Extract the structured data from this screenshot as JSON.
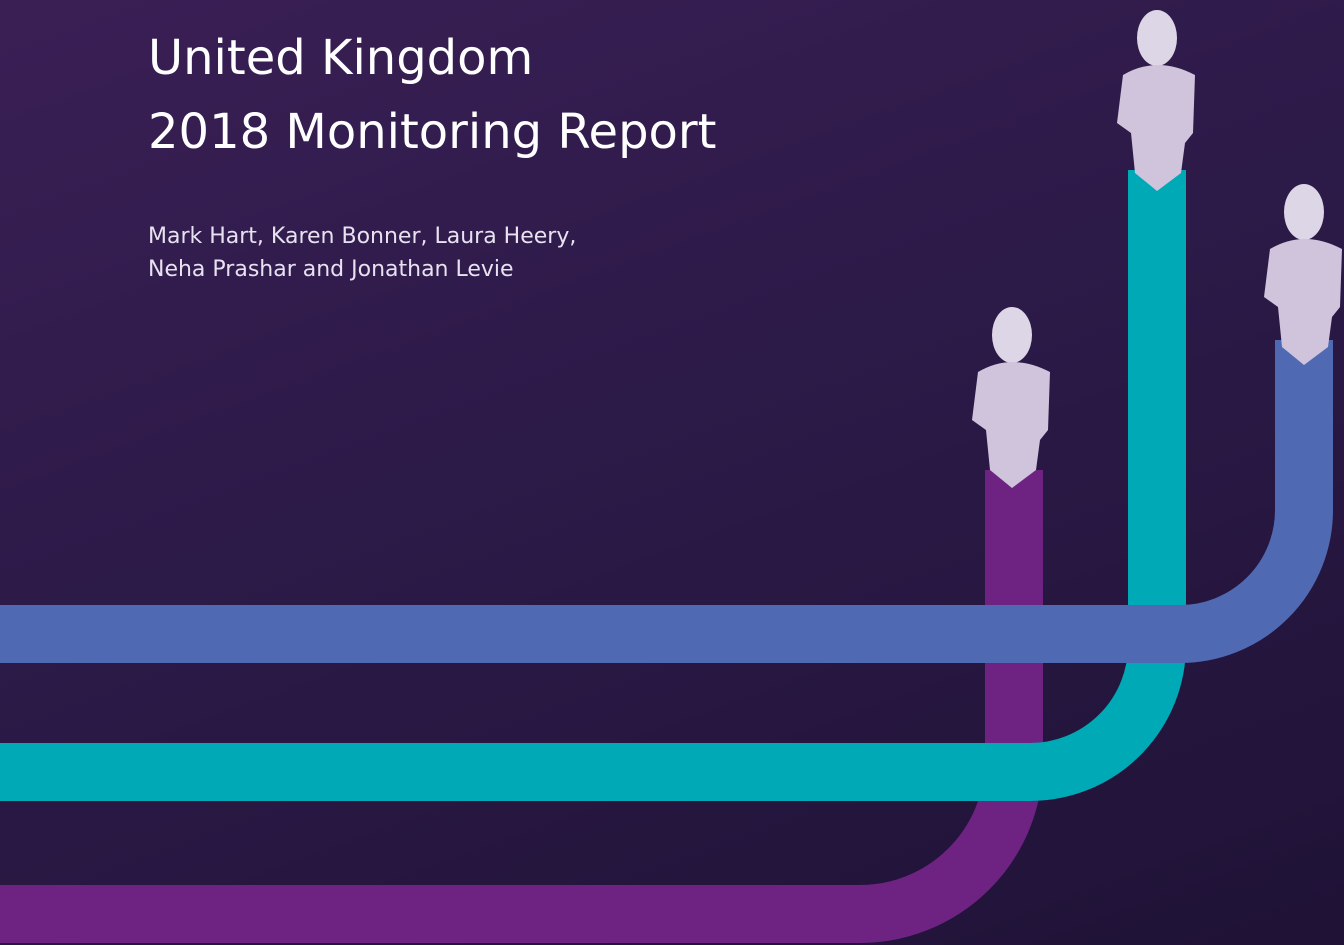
{
  "cover": {
    "title": [
      "United Kingdom",
      "2018 Monitoring Report"
    ],
    "authors": [
      "Mark Hart, Karen Bonner, Laura Heery,",
      "Neha Prashar and Jonathan Levie"
    ]
  }
}
